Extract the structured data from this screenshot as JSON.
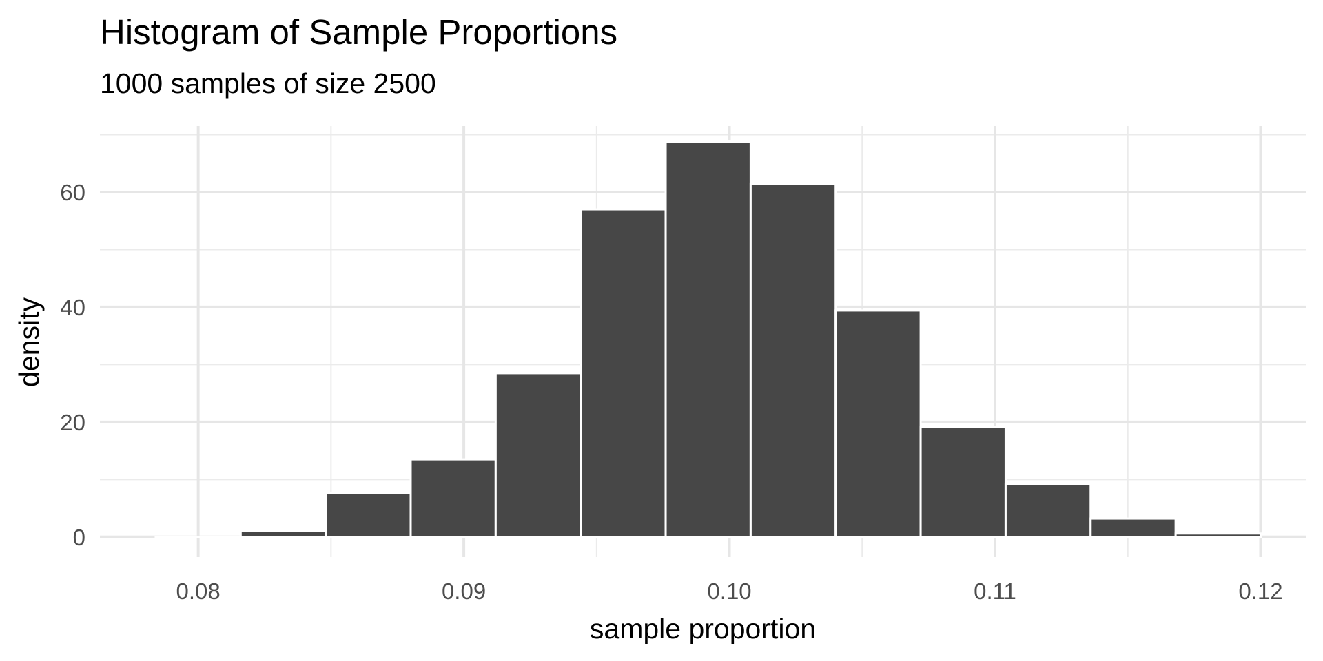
{
  "chart_data": {
    "type": "bar",
    "subtype": "histogram",
    "title": "Histogram of Sample Proportions",
    "subtitle": "1000 samples of size 2500",
    "xlabel": "sample proportion",
    "ylabel": "density",
    "xlim": [
      0.0763,
      0.1217
    ],
    "ylim": [
      -3.5,
      71.5
    ],
    "x_ticks": [
      0.08,
      0.09,
      0.1,
      0.11,
      0.12
    ],
    "x_tick_labels": [
      "0.08",
      "0.09",
      "0.10",
      "0.11",
      "0.12"
    ],
    "y_ticks": [
      0,
      20,
      40,
      60
    ],
    "y_tick_labels": [
      "0",
      "20",
      "40",
      "60"
    ],
    "grid": true,
    "bar_color": "#474747",
    "bar_outline": "#ffffff",
    "bins": [
      {
        "x0": 0.0784,
        "x1": 0.0816,
        "density": 0.0
      },
      {
        "x0": 0.0816,
        "x1": 0.0848,
        "density": 1.0
      },
      {
        "x0": 0.0848,
        "x1": 0.088,
        "density": 7.6
      },
      {
        "x0": 0.088,
        "x1": 0.0912,
        "density": 13.5
      },
      {
        "x0": 0.0912,
        "x1": 0.0944,
        "density": 28.5
      },
      {
        "x0": 0.0944,
        "x1": 0.0976,
        "density": 57.0
      },
      {
        "x0": 0.0976,
        "x1": 0.1008,
        "density": 68.8
      },
      {
        "x0": 0.1008,
        "x1": 0.104,
        "density": 61.4
      },
      {
        "x0": 0.104,
        "x1": 0.1072,
        "density": 39.4
      },
      {
        "x0": 0.1072,
        "x1": 0.1104,
        "density": 19.2
      },
      {
        "x0": 0.1104,
        "x1": 0.1136,
        "density": 9.2
      },
      {
        "x0": 0.1136,
        "x1": 0.1168,
        "density": 3.2
      },
      {
        "x0": 0.1168,
        "x1": 0.12,
        "density": 0.6
      }
    ]
  }
}
